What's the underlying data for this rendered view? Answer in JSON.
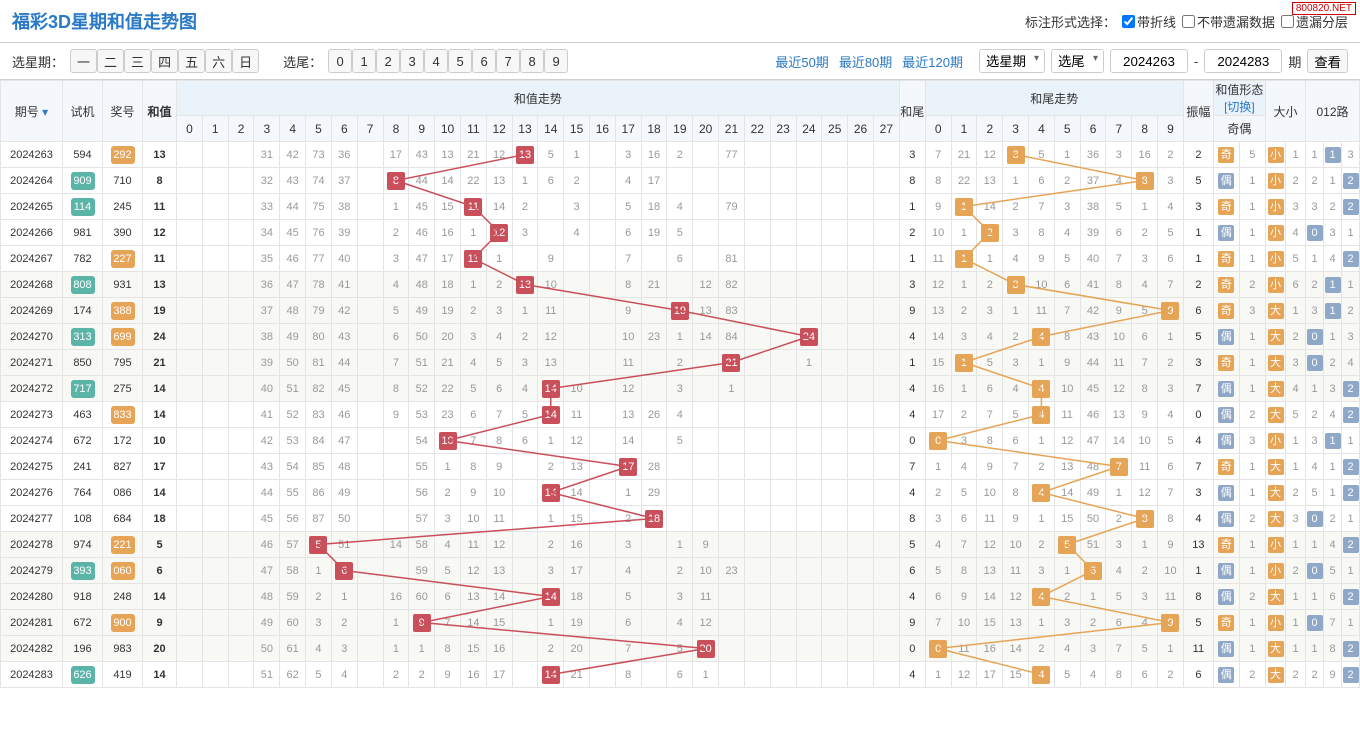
{
  "title": "福彩3D星期和值走势图",
  "watermark": "800820.NET",
  "controls": {
    "label": "标注形式选择：",
    "cb1": "带折线",
    "cb2": "不带遗漏数据",
    "cb3": "遗漏分层"
  },
  "bar": {
    "selWeek": "选星期：",
    "weekBtns": [
      "一",
      "二",
      "三",
      "四",
      "五",
      "六",
      "日"
    ],
    "selTail": "选尾：",
    "tailBtns": [
      "0",
      "1",
      "2",
      "3",
      "4",
      "5",
      "6",
      "7",
      "8",
      "9"
    ],
    "recent": [
      "最近50期",
      "最近80期",
      "最近120期"
    ],
    "dd1": "选星期",
    "dd2": "选尾",
    "from": "2024263",
    "to": "2024283",
    "qiLabel": "期",
    "view": "查看"
  },
  "headers": {
    "qh": "期号",
    "sj": "试机",
    "jh": "奖号",
    "hz": "和值",
    "hzTrend": "和值走势",
    "hw": "和尾",
    "hwTrend": "和尾走势",
    "hzForm": "和值形态",
    "switch": "[切换]",
    "zf": "振幅",
    "jo": "奇偶",
    "dx": "大小",
    "lu": "012路"
  },
  "hzCols": 28,
  "hwCols": 10,
  "lineColor": {
    "red": "#c94f5a",
    "orange": "#e6a456"
  },
  "rows": [
    {
      "qh": "2024263",
      "sj": "594",
      "jh": "292",
      "jhC": "o",
      "hz": 13,
      "hw": 3,
      "hwHit": 3,
      "zf": 2,
      "jo": "奇",
      "joC": "o",
      "joN": 5,
      "dx": "小",
      "dxC": "o",
      "dxN": 1,
      "lu": [
        1,
        "1",
        3
      ],
      "luC": 1,
      "hzCells": [
        "",
        "",
        "",
        "31",
        "42",
        "73",
        "36",
        "",
        "17",
        "43",
        "13",
        "21",
        "12",
        "13",
        "5",
        "1",
        "",
        "3",
        "16",
        "2",
        "",
        "77",
        "",
        "",
        "",
        "",
        "",
        ""
      ],
      "hwCells": [
        "7",
        "21",
        "12",
        "3",
        "5",
        "1",
        "36",
        "3",
        "16",
        "2"
      ]
    },
    {
      "qh": "2024264",
      "sj": "909",
      "sjC": "t",
      "jh": "710",
      "hz": 8,
      "hw": 8,
      "hwHit": 8,
      "zf": 5,
      "jo": "偶",
      "joC": "b",
      "joN": 1,
      "dx": "小",
      "dxC": "o",
      "dxN": 2,
      "lu": [
        2,
        1,
        "2"
      ],
      "luC": 2,
      "hzCells": [
        "",
        "",
        "",
        "32",
        "43",
        "74",
        "37",
        "",
        "8",
        "44",
        "14",
        "22",
        "13",
        "1",
        "6",
        "2",
        "",
        "4",
        "17",
        "",
        "",
        "",
        "",
        "",
        "",
        "",
        "",
        ""
      ],
      "hwCells": [
        "8",
        "22",
        "13",
        "1",
        "6",
        "2",
        "37",
        "4",
        "8",
        "3"
      ]
    },
    {
      "qh": "2024265",
      "sj": "114",
      "sjC": "t",
      "jh": "245",
      "hz": 11,
      "hw": 1,
      "hwHit": 1,
      "zf": 3,
      "jo": "奇",
      "joC": "o",
      "joN": 1,
      "dx": "小",
      "dxC": "o",
      "dxN": 3,
      "lu": [
        3,
        2,
        "2"
      ],
      "luC": 2,
      "hzCells": [
        "",
        "",
        "",
        "33",
        "44",
        "75",
        "38",
        "",
        "1",
        "45",
        "15",
        "11",
        "14",
        "2",
        "",
        "3",
        "",
        "5",
        "18",
        "4",
        "",
        "79",
        "",
        "",
        "",
        "",
        "",
        ""
      ],
      "hwCells": [
        "9",
        "1",
        "14",
        "2",
        "7",
        "3",
        "38",
        "5",
        "1",
        "4"
      ]
    },
    {
      "qh": "2024266",
      "sj": "981",
      "jh": "390",
      "hz": 12,
      "hw": 2,
      "hwHit": 2,
      "zf": 1,
      "jo": "偶",
      "joC": "b",
      "joN": 1,
      "dx": "小",
      "dxC": "o",
      "dxN": 4,
      "lu": [
        "0",
        3,
        1
      ],
      "luC": 0,
      "hzCells": [
        "",
        "",
        "",
        "34",
        "45",
        "76",
        "39",
        "",
        "2",
        "46",
        "16",
        "1",
        "12",
        "3",
        "",
        "4",
        "",
        "6",
        "19",
        "5",
        "",
        "",
        "",
        "",
        "",
        "",
        "",
        ""
      ],
      "hwCells": [
        "10",
        "1",
        "2",
        "3",
        "8",
        "4",
        "39",
        "6",
        "2",
        "5"
      ]
    },
    {
      "qh": "2024267",
      "sj": "782",
      "jh": "227",
      "jhC": "o",
      "hz": 11,
      "hw": 1,
      "hwHit": 1,
      "zf": 1,
      "jo": "奇",
      "joC": "o",
      "joN": 1,
      "dx": "小",
      "dxC": "o",
      "dxN": 5,
      "lu": [
        1,
        4,
        "2"
      ],
      "luC": 2,
      "hzCells": [
        "",
        "",
        "",
        "35",
        "46",
        "77",
        "40",
        "",
        "3",
        "47",
        "17",
        "11",
        "1",
        "",
        "9",
        "",
        "",
        "7",
        "",
        "6",
        "",
        "81",
        "",
        "",
        "",
        "",
        "",
        ""
      ],
      "hwCells": [
        "11",
        "1",
        "1",
        "4",
        "9",
        "5",
        "40",
        "7",
        "3",
        "6"
      ]
    },
    {
      "qh": "2024268",
      "sj": "808",
      "sjC": "t",
      "jh": "931",
      "hz": 13,
      "hw": 3,
      "hwHit": 3,
      "zf": 2,
      "jo": "奇",
      "joC": "o",
      "joN": 2,
      "dx": "小",
      "dxC": "o",
      "dxN": 6,
      "lu": [
        2,
        "1",
        1
      ],
      "luC": 1,
      "hzCells": [
        "",
        "",
        "",
        "36",
        "47",
        "78",
        "41",
        "",
        "4",
        "48",
        "18",
        "1",
        "2",
        "13",
        "10",
        "",
        "",
        "8",
        "21",
        "",
        "12",
        "82",
        "",
        "",
        "",
        "",
        "",
        ""
      ],
      "hwCells": [
        "12",
        "1",
        "2",
        "3",
        "10",
        "6",
        "41",
        "8",
        "4",
        "7"
      ]
    },
    {
      "qh": "2024269",
      "sj": "174",
      "jh": "388",
      "jhC": "o",
      "hz": 19,
      "hw": 9,
      "hwHit": 9,
      "zf": 6,
      "jo": "奇",
      "joC": "o",
      "joN": 3,
      "dx": "大",
      "dxC": "o",
      "dxN": 1,
      "lu": [
        3,
        "1",
        2
      ],
      "luC": 1,
      "hzCells": [
        "",
        "",
        "",
        "37",
        "48",
        "79",
        "42",
        "",
        "5",
        "49",
        "19",
        "2",
        "3",
        "1",
        "11",
        "",
        "",
        "9",
        "",
        "19",
        "13",
        "83",
        "",
        "",
        "",
        "",
        "",
        ""
      ],
      "hwCells": [
        "13",
        "2",
        "3",
        "1",
        "11",
        "7",
        "42",
        "9",
        "5",
        "9"
      ]
    },
    {
      "qh": "2024270",
      "sj": "313",
      "sjC": "t",
      "jh": "699",
      "jhC": "o",
      "hz": 24,
      "hw": 4,
      "hwHit": 4,
      "zf": 5,
      "jo": "偶",
      "joC": "b",
      "joN": 1,
      "dx": "大",
      "dxC": "o",
      "dxN": 2,
      "lu": [
        "0",
        1,
        3
      ],
      "luC": 0,
      "hzCells": [
        "",
        "",
        "",
        "38",
        "49",
        "80",
        "43",
        "",
        "6",
        "50",
        "20",
        "3",
        "4",
        "2",
        "12",
        "",
        "",
        "10",
        "23",
        "1",
        "14",
        "84",
        "",
        "",
        "24",
        "",
        "",
        ""
      ],
      "hwCells": [
        "14",
        "3",
        "4",
        "2",
        "4",
        "8",
        "43",
        "10",
        "6",
        "1"
      ]
    },
    {
      "qh": "2024271",
      "sj": "850",
      "jh": "795",
      "hz": 21,
      "hw": 1,
      "hwHit": 1,
      "zf": 3,
      "jo": "奇",
      "joC": "o",
      "joN": 1,
      "dx": "大",
      "dxC": "o",
      "dxN": 3,
      "lu": [
        "0",
        2,
        4
      ],
      "luC": 0,
      "hzCells": [
        "",
        "",
        "",
        "39",
        "50",
        "81",
        "44",
        "",
        "7",
        "51",
        "21",
        "4",
        "5",
        "3",
        "13",
        "",
        "",
        "11",
        "",
        "2",
        "",
        "21",
        "",
        "",
        "1",
        "",
        "",
        ""
      ],
      "hwCells": [
        "15",
        "1",
        "5",
        "3",
        "1",
        "9",
        "44",
        "11",
        "7",
        "2"
      ]
    },
    {
      "qh": "2024272",
      "sj": "717",
      "sjC": "t",
      "jh": "275",
      "hz": 14,
      "hw": 4,
      "hwHit": 4,
      "zf": 7,
      "jo": "偶",
      "joC": "b",
      "joN": 1,
      "dx": "大",
      "dxC": "o",
      "dxN": 4,
      "lu": [
        1,
        3,
        "2"
      ],
      "luC": 2,
      "hzCells": [
        "",
        "",
        "",
        "40",
        "51",
        "82",
        "45",
        "",
        "8",
        "52",
        "22",
        "5",
        "6",
        "4",
        "14",
        "10",
        "",
        "12",
        "",
        "3",
        "",
        "1",
        "",
        "",
        "",
        "",
        "",
        ""
      ],
      "hwCells": [
        "16",
        "1",
        "6",
        "4",
        "4",
        "10",
        "45",
        "12",
        "8",
        "3"
      ]
    },
    {
      "qh": "2024273",
      "sj": "463",
      "jh": "833",
      "jhC": "o",
      "hz": 14,
      "hw": 4,
      "hwHit": 4,
      "zf": 0,
      "jo": "偶",
      "joC": "b",
      "joN": 2,
      "dx": "大",
      "dxC": "o",
      "dxN": 5,
      "lu": [
        2,
        4,
        "2"
      ],
      "luC": 2,
      "hzCells": [
        "",
        "",
        "",
        "41",
        "52",
        "83",
        "46",
        "",
        "9",
        "53",
        "23",
        "6",
        "7",
        "5",
        "14",
        "11",
        "",
        "13",
        "26",
        "4",
        "",
        "",
        "",
        "",
        "",
        "",
        "",
        ""
      ],
      "hwCells": [
        "17",
        "2",
        "7",
        "5",
        "4",
        "11",
        "46",
        "13",
        "9",
        "4"
      ]
    },
    {
      "qh": "2024274",
      "sj": "672",
      "jh": "172",
      "hz": 10,
      "hw": 0,
      "hwHit": 0,
      "zf": 4,
      "jo": "偶",
      "joC": "b",
      "joN": 3,
      "dx": "小",
      "dxC": "o",
      "dxN": 1,
      "lu": [
        3,
        "1",
        1
      ],
      "luC": 1,
      "hzCells": [
        "",
        "",
        "",
        "42",
        "53",
        "84",
        "47",
        "",
        "",
        "54",
        "10",
        "7",
        "8",
        "6",
        "1",
        "12",
        "",
        "14",
        "",
        "5",
        "",
        "",
        "",
        "",
        "",
        "",
        "",
        ""
      ],
      "hwCells": [
        "0",
        "3",
        "8",
        "6",
        "1",
        "12",
        "47",
        "14",
        "10",
        "5"
      ]
    },
    {
      "qh": "2024275",
      "sj": "241",
      "jh": "827",
      "hz": 17,
      "hw": 7,
      "hwHit": 7,
      "zf": 7,
      "jo": "奇",
      "joC": "o",
      "joN": 1,
      "dx": "大",
      "dxC": "o",
      "dxN": 1,
      "lu": [
        4,
        1,
        "2"
      ],
      "luC": 2,
      "hzCells": [
        "",
        "",
        "",
        "43",
        "54",
        "85",
        "48",
        "",
        "",
        "55",
        "1",
        "8",
        "9",
        "",
        "2",
        "13",
        "",
        "17",
        "28",
        "",
        "",
        "",
        "",
        "",
        "",
        "",
        "",
        ""
      ],
      "hwCells": [
        "1",
        "4",
        "9",
        "7",
        "2",
        "13",
        "48",
        "7",
        "11",
        "6"
      ]
    },
    {
      "qh": "2024276",
      "sj": "764",
      "jh": "086",
      "hz": 14,
      "hw": 4,
      "hwHit": 4,
      "zf": 3,
      "jo": "偶",
      "joC": "b",
      "joN": 1,
      "dx": "大",
      "dxC": "o",
      "dxN": 2,
      "lu": [
        5,
        1,
        "2"
      ],
      "luC": 2,
      "hzCells": [
        "",
        "",
        "",
        "44",
        "55",
        "86",
        "49",
        "",
        "",
        "56",
        "2",
        "9",
        "10",
        "",
        "14",
        "14",
        "",
        "1",
        "29",
        "",
        "",
        "",
        "",
        "",
        "",
        "",
        "",
        ""
      ],
      "hwCells": [
        "2",
        "5",
        "10",
        "8",
        "4",
        "14",
        "49",
        "1",
        "12",
        "7"
      ]
    },
    {
      "qh": "2024277",
      "sj": "108",
      "jh": "684",
      "hz": 18,
      "hw": 8,
      "hwHit": 8,
      "zf": 4,
      "jo": "偶",
      "joC": "b",
      "joN": 2,
      "dx": "大",
      "dxC": "o",
      "dxN": 3,
      "lu": [
        "0",
        2,
        1
      ],
      "luC": 0,
      "hzCells": [
        "",
        "",
        "",
        "45",
        "56",
        "87",
        "50",
        "",
        "",
        "57",
        "3",
        "10",
        "11",
        "",
        "1",
        "15",
        "",
        "2",
        "18",
        "",
        "",
        "",
        "",
        "",
        "",
        "",
        "",
        ""
      ],
      "hwCells": [
        "3",
        "6",
        "11",
        "9",
        "1",
        "15",
        "50",
        "2",
        "8",
        "8"
      ]
    },
    {
      "qh": "2024278",
      "sj": "974",
      "jh": "221",
      "jhC": "o",
      "hz": 5,
      "hw": 5,
      "hwHit": 5,
      "zf": 13,
      "jo": "奇",
      "joC": "o",
      "joN": 1,
      "dx": "小",
      "dxC": "o",
      "dxN": 1,
      "lu": [
        1,
        4,
        "2"
      ],
      "luC": 2,
      "hzCells": [
        "",
        "",
        "",
        "46",
        "57",
        "5",
        "51",
        "",
        "14",
        "58",
        "4",
        "11",
        "12",
        "",
        "2",
        "16",
        "",
        "3",
        "",
        "1",
        "9",
        "",
        "",
        "",
        "",
        "",
        "",
        ""
      ],
      "hwCells": [
        "4",
        "7",
        "12",
        "10",
        "2",
        "5",
        "51",
        "3",
        "1",
        "9"
      ]
    },
    {
      "qh": "2024279",
      "sj": "393",
      "sjC": "t",
      "jh": "060",
      "jhC": "o",
      "hz": 6,
      "hw": 6,
      "hwHit": 6,
      "zf": 1,
      "jo": "偶",
      "joC": "b",
      "joN": 1,
      "dx": "小",
      "dxC": "o",
      "dxN": 2,
      "lu": [
        "0",
        5,
        1
      ],
      "luC": 0,
      "hzCells": [
        "",
        "",
        "",
        "47",
        "58",
        "1",
        "6",
        "",
        "",
        "59",
        "5",
        "12",
        "13",
        "",
        "3",
        "17",
        "",
        "4",
        "",
        "2",
        "10",
        "23",
        "",
        "",
        "",
        "",
        "",
        ""
      ],
      "hwCells": [
        "5",
        "8",
        "13",
        "11",
        "3",
        "1",
        "6",
        "4",
        "2",
        "10"
      ]
    },
    {
      "qh": "2024280",
      "sj": "918",
      "jh": "248",
      "hz": 14,
      "hw": 4,
      "hwHit": 4,
      "zf": 8,
      "jo": "偶",
      "joC": "b",
      "joN": 2,
      "dx": "大",
      "dxC": "o",
      "dxN": 1,
      "lu": [
        1,
        6,
        "2"
      ],
      "luC": 2,
      "hzCells": [
        "",
        "",
        "",
        "48",
        "59",
        "2",
        "1",
        "",
        "16",
        "60",
        "6",
        "13",
        "14",
        "",
        "14",
        "18",
        "",
        "5",
        "",
        "3",
        "11",
        "",
        "",
        "",
        "",
        "",
        "",
        ""
      ],
      "hwCells": [
        "6",
        "9",
        "14",
        "12",
        "4",
        "2",
        "1",
        "5",
        "3",
        "11"
      ]
    },
    {
      "qh": "2024281",
      "sj": "672",
      "jh": "900",
      "jhC": "o",
      "hz": 9,
      "hw": 9,
      "hwHit": 9,
      "zf": 5,
      "jo": "奇",
      "joC": "o",
      "joN": 1,
      "dx": "小",
      "dxC": "o",
      "dxN": 1,
      "lu": [
        "0",
        7,
        1
      ],
      "luC": 0,
      "hzCells": [
        "",
        "",
        "",
        "49",
        "60",
        "3",
        "2",
        "",
        "1",
        "9",
        "7",
        "14",
        "15",
        "",
        "1",
        "19",
        "",
        "6",
        "",
        "4",
        "12",
        "",
        "",
        "",
        "",
        "",
        "",
        ""
      ],
      "hwCells": [
        "7",
        "10",
        "15",
        "13",
        "1",
        "3",
        "2",
        "6",
        "4",
        "9"
      ]
    },
    {
      "qh": "2024282",
      "sj": "196",
      "jh": "983",
      "hz": 20,
      "hw": 0,
      "hwHit": 0,
      "zf": 11,
      "jo": "偶",
      "joC": "b",
      "joN": 1,
      "dx": "大",
      "dxC": "o",
      "dxN": 1,
      "lu": [
        1,
        8,
        "2"
      ],
      "luC": 2,
      "hzCells": [
        "",
        "",
        "",
        "50",
        "61",
        "4",
        "3",
        "",
        "1",
        "1",
        "8",
        "15",
        "16",
        "",
        "2",
        "20",
        "",
        "7",
        "",
        "5",
        "20",
        "",
        "",
        "",
        "",
        "",
        "",
        ""
      ],
      "hwCells": [
        "0",
        "11",
        "16",
        "14",
        "2",
        "4",
        "3",
        "7",
        "5",
        "1"
      ]
    },
    {
      "qh": "2024283",
      "sj": "626",
      "sjC": "t",
      "jh": "419",
      "hz": 14,
      "hw": 4,
      "hwHit": 4,
      "zf": 6,
      "jo": "偶",
      "joC": "b",
      "joN": 2,
      "dx": "大",
      "dxC": "o",
      "dxN": 2,
      "lu": [
        2,
        9,
        "2"
      ],
      "luC": 2,
      "hzCells": [
        "",
        "",
        "",
        "51",
        "62",
        "5",
        "4",
        "",
        "2",
        "2",
        "9",
        "16",
        "17",
        "",
        "14",
        "21",
        "",
        "8",
        "",
        "6",
        "1",
        "",
        "",
        "",
        "",
        "",
        "",
        ""
      ],
      "hwCells": [
        "1",
        "12",
        "17",
        "15",
        "4",
        "5",
        "4",
        "8",
        "6",
        "2"
      ]
    }
  ]
}
